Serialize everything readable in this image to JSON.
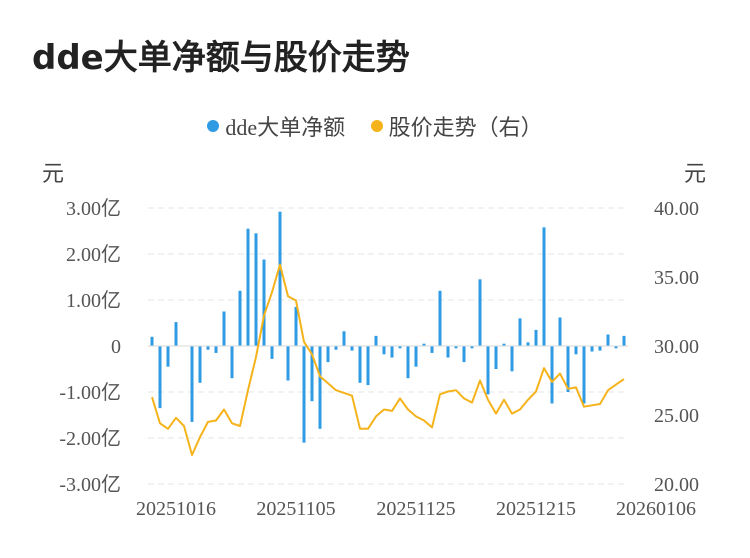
{
  "title": "dde大单净额与股价走势",
  "legend": [
    {
      "label": "dde大单净额",
      "color": "#2f9be3"
    },
    {
      "label": "股价走势（右）",
      "color": "#f5b31b"
    }
  ],
  "chart_data": {
    "type": "bar+line",
    "left_unit": "元",
    "right_unit": "元",
    "left_axis": {
      "min": -3,
      "max": 3,
      "ticks": [
        3,
        2,
        1,
        0,
        -1,
        -2,
        -3
      ],
      "tick_labels": [
        "3.00亿",
        "2.00亿",
        "1.00亿",
        "0",
        "-1.00亿",
        "-2.00亿",
        "-3.00亿"
      ]
    },
    "right_axis": {
      "min": 20,
      "max": 40,
      "ticks": [
        40,
        35,
        30,
        25,
        20
      ],
      "tick_labels": [
        "40.00",
        "35.00",
        "30.00",
        "25.00",
        "20.00"
      ]
    },
    "x_tick_labels": [
      "20251016",
      "20251105",
      "20251125",
      "20251215",
      "20260106"
    ],
    "x_tick_positions": [
      3,
      18,
      33,
      48,
      63
    ],
    "grid": "horizontal dashed",
    "legend_position": "top-center",
    "series": [
      {
        "name": "dde大单净额",
        "type": "bar",
        "unit": "亿元",
        "values": [
          0.2,
          -1.35,
          -0.45,
          0.52,
          0,
          -1.65,
          -0.8,
          -0.08,
          -0.15,
          0.75,
          -0.7,
          1.2,
          2.55,
          2.45,
          1.88,
          -0.28,
          2.92,
          -0.75,
          0.85,
          -2.1,
          -1.2,
          -1.8,
          -0.35,
          -0.08,
          0.32,
          -0.1,
          -0.8,
          -0.85,
          0.22,
          -0.18,
          -0.25,
          -0.05,
          -0.7,
          -0.45,
          0.05,
          -0.15,
          1.2,
          -0.25,
          -0.05,
          -0.35,
          -0.05,
          1.45,
          -1.05,
          -0.5,
          0.05,
          -0.55,
          0.6,
          0.08,
          0.35,
          2.58,
          -1.25,
          0.62,
          -1.0,
          -0.18,
          -1.25,
          -0.12,
          -0.1,
          0.25,
          -0.05,
          0.22
        ]
      },
      {
        "name": "股价走势（右）",
        "type": "line",
        "values": [
          26.3,
          24.4,
          24.0,
          24.8,
          24.2,
          22.1,
          23.4,
          24.5,
          24.6,
          25.4,
          24.4,
          24.2,
          26.8,
          29.2,
          32.2,
          33.9,
          35.9,
          33.6,
          33.3,
          30.3,
          29.4,
          27.8,
          27.3,
          26.8,
          26.6,
          26.4,
          24.0,
          24.0,
          24.9,
          25.4,
          25.3,
          26.2,
          25.4,
          24.9,
          24.6,
          24.1,
          26.5,
          26.7,
          26.8,
          26.2,
          25.9,
          27.5,
          26.1,
          25.1,
          26.1,
          25.1,
          25.4,
          26.1,
          26.7,
          28.4,
          27.4,
          28.0,
          26.9,
          27.0,
          25.6,
          25.7,
          25.8,
          26.8,
          27.2,
          27.6
        ]
      }
    ]
  }
}
